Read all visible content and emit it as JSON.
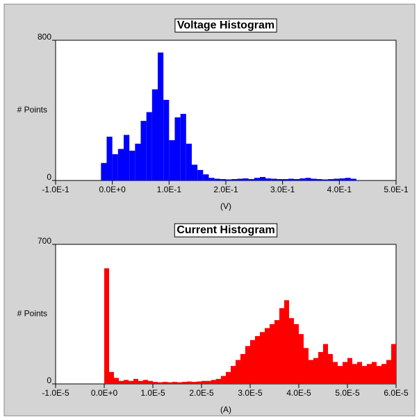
{
  "chart_data": [
    {
      "type": "histogram",
      "title": "Voltage Histogram",
      "xlabel": "(V)",
      "ylabel": "# Points",
      "color": "#0000ff",
      "bins": [
        -0.02,
        -0.01,
        0,
        0.01,
        0.02,
        0.03,
        0.04,
        0.05,
        0.06,
        0.07,
        0.08,
        0.09,
        0.1,
        0.11,
        0.12,
        0.13,
        0.14,
        0.15,
        0.16,
        0.17,
        0.18,
        0.19,
        0.2,
        0.21,
        0.22,
        0.23,
        0.24,
        0.25,
        0.26,
        0.27,
        0.28,
        0.29,
        0.3,
        0.31,
        0.32,
        0.33,
        0.34,
        0.35,
        0.36,
        0.37,
        0.38,
        0.39,
        0.4,
        0.41,
        0.42,
        0.43
      ],
      "values": [
        100,
        250,
        150,
        180,
        260,
        170,
        210,
        340,
        390,
        520,
        730,
        460,
        230,
        360,
        380,
        210,
        90,
        60,
        35,
        15,
        10,
        8,
        6,
        8,
        10,
        12,
        8,
        15,
        20,
        12,
        10,
        8,
        8,
        10,
        8,
        12,
        15,
        10,
        8,
        6,
        8,
        10,
        12,
        15,
        10
      ],
      "xlim": [
        -0.1,
        0.5
      ],
      "xticks": [
        {
          "value": -0.1,
          "label": "-1.0E-1"
        },
        {
          "value": 0,
          "label": "0.0E+0"
        },
        {
          "value": 0.1,
          "label": "1.0E-1"
        },
        {
          "value": 0.2,
          "label": "2.0E-1"
        },
        {
          "value": 0.3,
          "label": "3.0E-1"
        },
        {
          "value": 0.4,
          "label": "4.0E-1"
        },
        {
          "value": 0.5,
          "label": "5.0E-1"
        }
      ],
      "ylim": [
        0,
        800
      ],
      "yticks": [
        0,
        800
      ]
    },
    {
      "type": "histogram",
      "title": "Current Histogram",
      "xlabel": "(A)",
      "ylabel": "# Points",
      "color": "#ff0000",
      "bins": [
        0,
        1e-06,
        2e-06,
        3e-06,
        4e-06,
        5e-06,
        6e-06,
        7e-06,
        8e-06,
        9e-06,
        1e-05,
        1.1e-05,
        1.2e-05,
        1.3e-05,
        1.4e-05,
        1.5e-05,
        1.6e-05,
        1.7e-05,
        1.8e-05,
        1.9e-05,
        2e-05,
        2.1e-05,
        2.2e-05,
        2.3e-05,
        2.4e-05,
        2.5e-05,
        2.6e-05,
        2.7e-05,
        2.8e-05,
        2.9e-05,
        3e-05,
        3.1e-05,
        3.2e-05,
        3.3e-05,
        3.4e-05,
        3.5e-05,
        3.6e-05,
        3.7e-05,
        3.8e-05,
        3.9e-05,
        4e-05,
        4.1e-05,
        4.2e-05,
        4.3e-05,
        4.4e-05,
        4.5e-05,
        4.6e-05,
        4.7e-05,
        4.8e-05,
        4.9e-05,
        5e-05,
        5.1e-05,
        5.2e-05,
        5.3e-05,
        5.4e-05,
        5.5e-05,
        5.6e-05,
        5.7e-05,
        5.8e-05,
        5.9e-05,
        6e-05
      ],
      "values": [
        580,
        60,
        30,
        15,
        20,
        15,
        25,
        15,
        20,
        15,
        10,
        8,
        10,
        8,
        10,
        8,
        10,
        12,
        10,
        12,
        15,
        15,
        20,
        25,
        40,
        60,
        90,
        120,
        150,
        190,
        220,
        240,
        260,
        280,
        300,
        320,
        380,
        420,
        330,
        300,
        250,
        180,
        120,
        130,
        160,
        200,
        150,
        110,
        90,
        110,
        130,
        100,
        110,
        90,
        100,
        110,
        90,
        100,
        120,
        200
      ],
      "xlim": [
        -1e-05,
        6e-05
      ],
      "xticks": [
        {
          "value": -1e-05,
          "label": "-1.0E-5"
        },
        {
          "value": 0,
          "label": "0.0E+0"
        },
        {
          "value": 1e-05,
          "label": "1.0E-5"
        },
        {
          "value": 2e-05,
          "label": "2.0E-5"
        },
        {
          "value": 3e-05,
          "label": "3.0E-5"
        },
        {
          "value": 4e-05,
          "label": "4.0E-5"
        },
        {
          "value": 5e-05,
          "label": "5.0E-5"
        },
        {
          "value": 6e-05,
          "label": "6.0E-5"
        }
      ],
      "ylim": [
        0,
        700
      ],
      "yticks": [
        0,
        700
      ]
    }
  ]
}
